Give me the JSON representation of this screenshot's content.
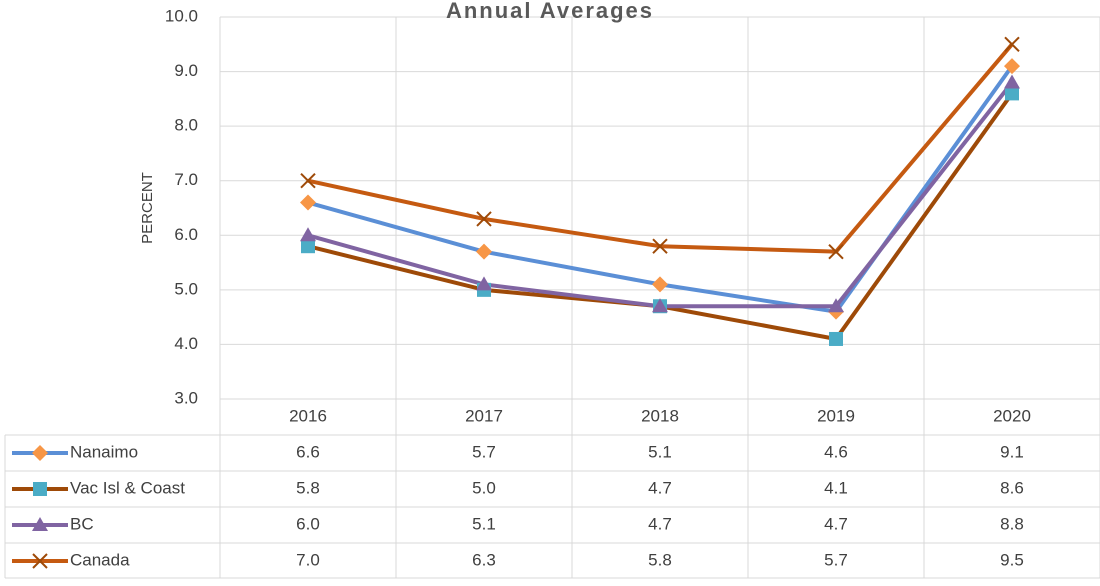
{
  "chart_data": {
    "type": "line",
    "title": "Annual Averages",
    "y_label": "PERCENT",
    "categories": [
      "2016",
      "2017",
      "2018",
      "2019",
      "2020"
    ],
    "ylim": [
      3,
      10
    ],
    "yticks": [
      {
        "value": 3,
        "label": "3.0"
      },
      {
        "value": 4,
        "label": "4.0"
      },
      {
        "value": 5,
        "label": "5.0"
      },
      {
        "value": 6,
        "label": "6.0"
      },
      {
        "value": 7,
        "label": "7.0"
      },
      {
        "value": 8,
        "label": "8.0"
      },
      {
        "value": 9,
        "label": "9.0"
      },
      {
        "value": 10,
        "label": "10.0"
      }
    ],
    "grid": true,
    "data_table": true,
    "series": [
      {
        "name": "Nanaimo",
        "color": "#5b8fd6",
        "marker": "diamond",
        "marker_color": "#f79646",
        "values": [
          6.6,
          5.7,
          5.1,
          4.6,
          9.1
        ],
        "value_labels": [
          "6.6",
          "5.7",
          "5.1",
          "4.6",
          "9.1"
        ]
      },
      {
        "name": "Vac Isl & Coast",
        "color": "#9e4a08",
        "marker": "square",
        "marker_color": "#4bacc6",
        "values": [
          5.8,
          5.0,
          4.7,
          4.1,
          8.6
        ],
        "value_labels": [
          "5.8",
          "5.0",
          "4.7",
          "4.1",
          "8.6"
        ]
      },
      {
        "name": "BC",
        "color": "#8064a2",
        "marker": "triangle",
        "marker_color": "#8064a2",
        "values": [
          6.0,
          5.1,
          4.7,
          4.7,
          8.8
        ],
        "value_labels": [
          "6.0",
          "5.1",
          "4.7",
          "4.7",
          "8.8"
        ]
      },
      {
        "name": "Canada",
        "color": "#c55a11",
        "marker": "x",
        "marker_color": "#9e4a08",
        "values": [
          7.0,
          6.3,
          5.8,
          5.7,
          9.5
        ],
        "value_labels": [
          "7.0",
          "6.3",
          "5.8",
          "5.7",
          "9.5"
        ]
      }
    ]
  }
}
